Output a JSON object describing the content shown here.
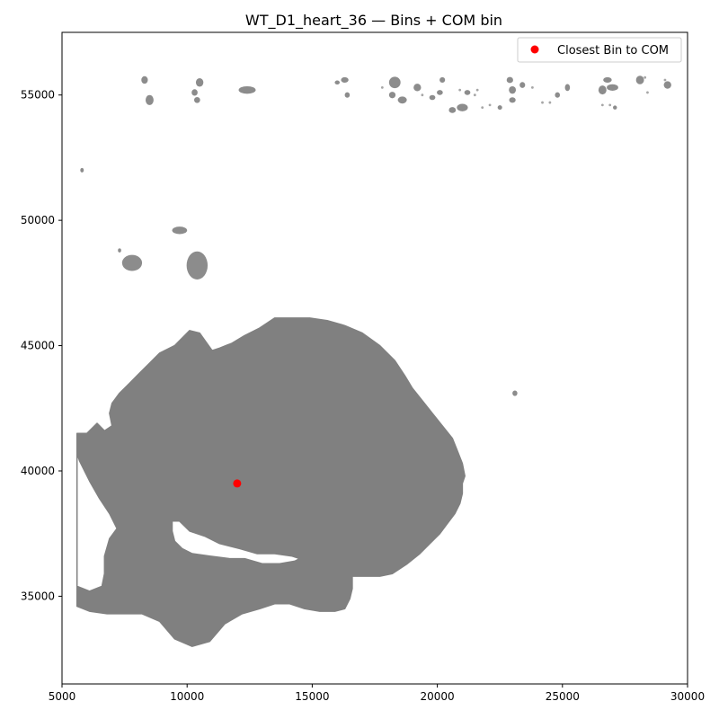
{
  "chart_data": {
    "type": "scatter",
    "title": "WT_D1_heart_36 — Bins + COM bin",
    "xlabel": "",
    "ylabel": "",
    "xlim": [
      5000,
      30000
    ],
    "ylim": [
      57500,
      31500
    ],
    "y_inverted": true,
    "x_ticks": [
      5000,
      10000,
      15000,
      20000,
      25000,
      30000
    ],
    "x_tick_labels": [
      "5000",
      "10000",
      "15000",
      "20000",
      "25000",
      "30000"
    ],
    "y_ticks": [
      35000,
      40000,
      45000,
      50000,
      55000
    ],
    "y_tick_labels": [
      "35000",
      "40000",
      "45000",
      "50000",
      "55000"
    ],
    "grid": false,
    "legend_position": "top-right",
    "colors": {
      "bins": "#808080",
      "com": "#ff0000"
    },
    "series": [
      {
        "name": "",
        "kind": "tissue-bins",
        "main_region": [
          [
            5600,
            34600
          ],
          [
            6100,
            34400
          ],
          [
            6800,
            34300
          ],
          [
            7500,
            34300
          ],
          [
            8200,
            34300
          ],
          [
            8900,
            34000
          ],
          [
            9500,
            33300
          ],
          [
            10200,
            33000
          ],
          [
            10900,
            33200
          ],
          [
            11500,
            33900
          ],
          [
            12200,
            34300
          ],
          [
            12900,
            34500
          ],
          [
            13500,
            34700
          ],
          [
            14100,
            34700
          ],
          [
            14700,
            34500
          ],
          [
            15300,
            34400
          ],
          [
            15900,
            34400
          ],
          [
            16300,
            34500
          ],
          [
            16500,
            34900
          ],
          [
            16600,
            35300
          ],
          [
            16600,
            35800
          ],
          [
            17000,
            35800
          ],
          [
            17700,
            35800
          ],
          [
            18200,
            35900
          ],
          [
            18800,
            36300
          ],
          [
            19300,
            36700
          ],
          [
            19700,
            37100
          ],
          [
            20100,
            37500
          ],
          [
            20400,
            37900
          ],
          [
            20700,
            38300
          ],
          [
            20900,
            38700
          ],
          [
            21000,
            39100
          ],
          [
            21000,
            39500
          ],
          [
            21100,
            39800
          ],
          [
            21000,
            40300
          ],
          [
            20800,
            40800
          ],
          [
            20600,
            41300
          ],
          [
            20200,
            41800
          ],
          [
            19800,
            42300
          ],
          [
            19400,
            42800
          ],
          [
            19000,
            43300
          ],
          [
            18700,
            43800
          ],
          [
            18300,
            44400
          ],
          [
            17700,
            45000
          ],
          [
            17000,
            45500
          ],
          [
            16300,
            45800
          ],
          [
            15600,
            46000
          ],
          [
            14900,
            46100
          ],
          [
            14200,
            46100
          ],
          [
            13500,
            46100
          ],
          [
            12900,
            45700
          ],
          [
            12300,
            45400
          ],
          [
            11800,
            45100
          ],
          [
            11300,
            44900
          ],
          [
            11000,
            44800
          ],
          [
            10500,
            45500
          ],
          [
            10100,
            45600
          ],
          [
            9500,
            45000
          ],
          [
            8900,
            44700
          ],
          [
            8500,
            44300
          ],
          [
            8100,
            43900
          ],
          [
            7700,
            43500
          ],
          [
            7300,
            43100
          ],
          [
            7000,
            42700
          ],
          [
            6900,
            42300
          ],
          [
            7000,
            41800
          ],
          [
            6700,
            41600
          ],
          [
            6400,
            41900
          ],
          [
            6000,
            41500
          ],
          [
            5600,
            41500
          ]
        ],
        "hole_main": [
          [
            9400,
            37600
          ],
          [
            9500,
            37200
          ],
          [
            9800,
            36900
          ],
          [
            10200,
            36700
          ],
          [
            10900,
            36600
          ],
          [
            11700,
            36500
          ],
          [
            12300,
            36500
          ],
          [
            13000,
            36300
          ],
          [
            13700,
            36300
          ],
          [
            14300,
            36400
          ],
          [
            14500,
            36500
          ],
          [
            14200,
            36600
          ],
          [
            13500,
            36700
          ],
          [
            12800,
            36700
          ],
          [
            12100,
            36900
          ],
          [
            11300,
            37100
          ],
          [
            10700,
            37400
          ],
          [
            10100,
            37600
          ],
          [
            9700,
            38000
          ],
          [
            9400,
            38000
          ]
        ],
        "hole_left": [
          [
            5600,
            35400
          ],
          [
            6100,
            35200
          ],
          [
            6600,
            35400
          ],
          [
            6700,
            35900
          ],
          [
            6700,
            36600
          ],
          [
            6900,
            37300
          ],
          [
            7200,
            37700
          ],
          [
            6900,
            38300
          ],
          [
            6500,
            38900
          ],
          [
            6100,
            39600
          ],
          [
            5700,
            40400
          ],
          [
            5600,
            40700
          ]
        ],
        "blobs": [
          [
            7800,
            48300,
            400,
            320
          ],
          [
            10400,
            48200,
            420,
            560
          ],
          [
            9700,
            49600,
            300,
            150
          ],
          [
            7300,
            48800,
            60,
            80
          ],
          [
            5800,
            52000,
            70,
            90
          ],
          [
            23100,
            43100,
            100,
            110
          ],
          [
            8500,
            54800,
            160,
            200
          ],
          [
            8300,
            55600,
            130,
            150
          ],
          [
            10400,
            54800,
            120,
            120
          ],
          [
            10300,
            55100,
            120,
            130
          ],
          [
            10500,
            55500,
            150,
            170
          ],
          [
            12400,
            55200,
            340,
            150
          ],
          [
            16400,
            55000,
            100,
            110
          ],
          [
            16000,
            55500,
            100,
            80
          ],
          [
            16300,
            55600,
            150,
            110
          ],
          [
            18200,
            55000,
            130,
            130
          ],
          [
            18600,
            54800,
            180,
            140
          ],
          [
            18300,
            55500,
            230,
            230
          ],
          [
            19200,
            55300,
            150,
            150
          ],
          [
            19800,
            54900,
            120,
            100
          ],
          [
            20200,
            55600,
            110,
            110
          ],
          [
            20100,
            55100,
            120,
            100
          ],
          [
            20600,
            54400,
            140,
            120
          ],
          [
            21000,
            54500,
            220,
            150
          ],
          [
            21200,
            55100,
            120,
            100
          ],
          [
            22500,
            54500,
            90,
            90
          ],
          [
            23000,
            54800,
            130,
            110
          ],
          [
            23000,
            55200,
            140,
            150
          ],
          [
            23400,
            55400,
            110,
            120
          ],
          [
            22900,
            55600,
            130,
            120
          ],
          [
            24800,
            55000,
            100,
            110
          ],
          [
            25200,
            55300,
            100,
            140
          ],
          [
            26600,
            55200,
            160,
            180
          ],
          [
            27000,
            55300,
            230,
            130
          ],
          [
            26800,
            55600,
            170,
            110
          ],
          [
            28100,
            55600,
            160,
            170
          ],
          [
            29200,
            55400,
            150,
            150
          ],
          [
            27100,
            54500,
            80,
            80
          ]
        ],
        "specks": [
          [
            21800,
            54500
          ],
          [
            22100,
            54600
          ],
          [
            24200,
            54700
          ],
          [
            24500,
            54700
          ],
          [
            26600,
            54600
          ],
          [
            26900,
            54600
          ],
          [
            28400,
            55100
          ],
          [
            19400,
            55000
          ],
          [
            21500,
            55000
          ],
          [
            21600,
            55200
          ],
          [
            17800,
            55300
          ],
          [
            20900,
            55200
          ],
          [
            23800,
            55300
          ],
          [
            28300,
            55700
          ],
          [
            29100,
            55600
          ]
        ]
      },
      {
        "name": "Closest Bin to COM",
        "kind": "marker",
        "x": [
          12000
        ],
        "y": [
          39500
        ]
      }
    ]
  }
}
